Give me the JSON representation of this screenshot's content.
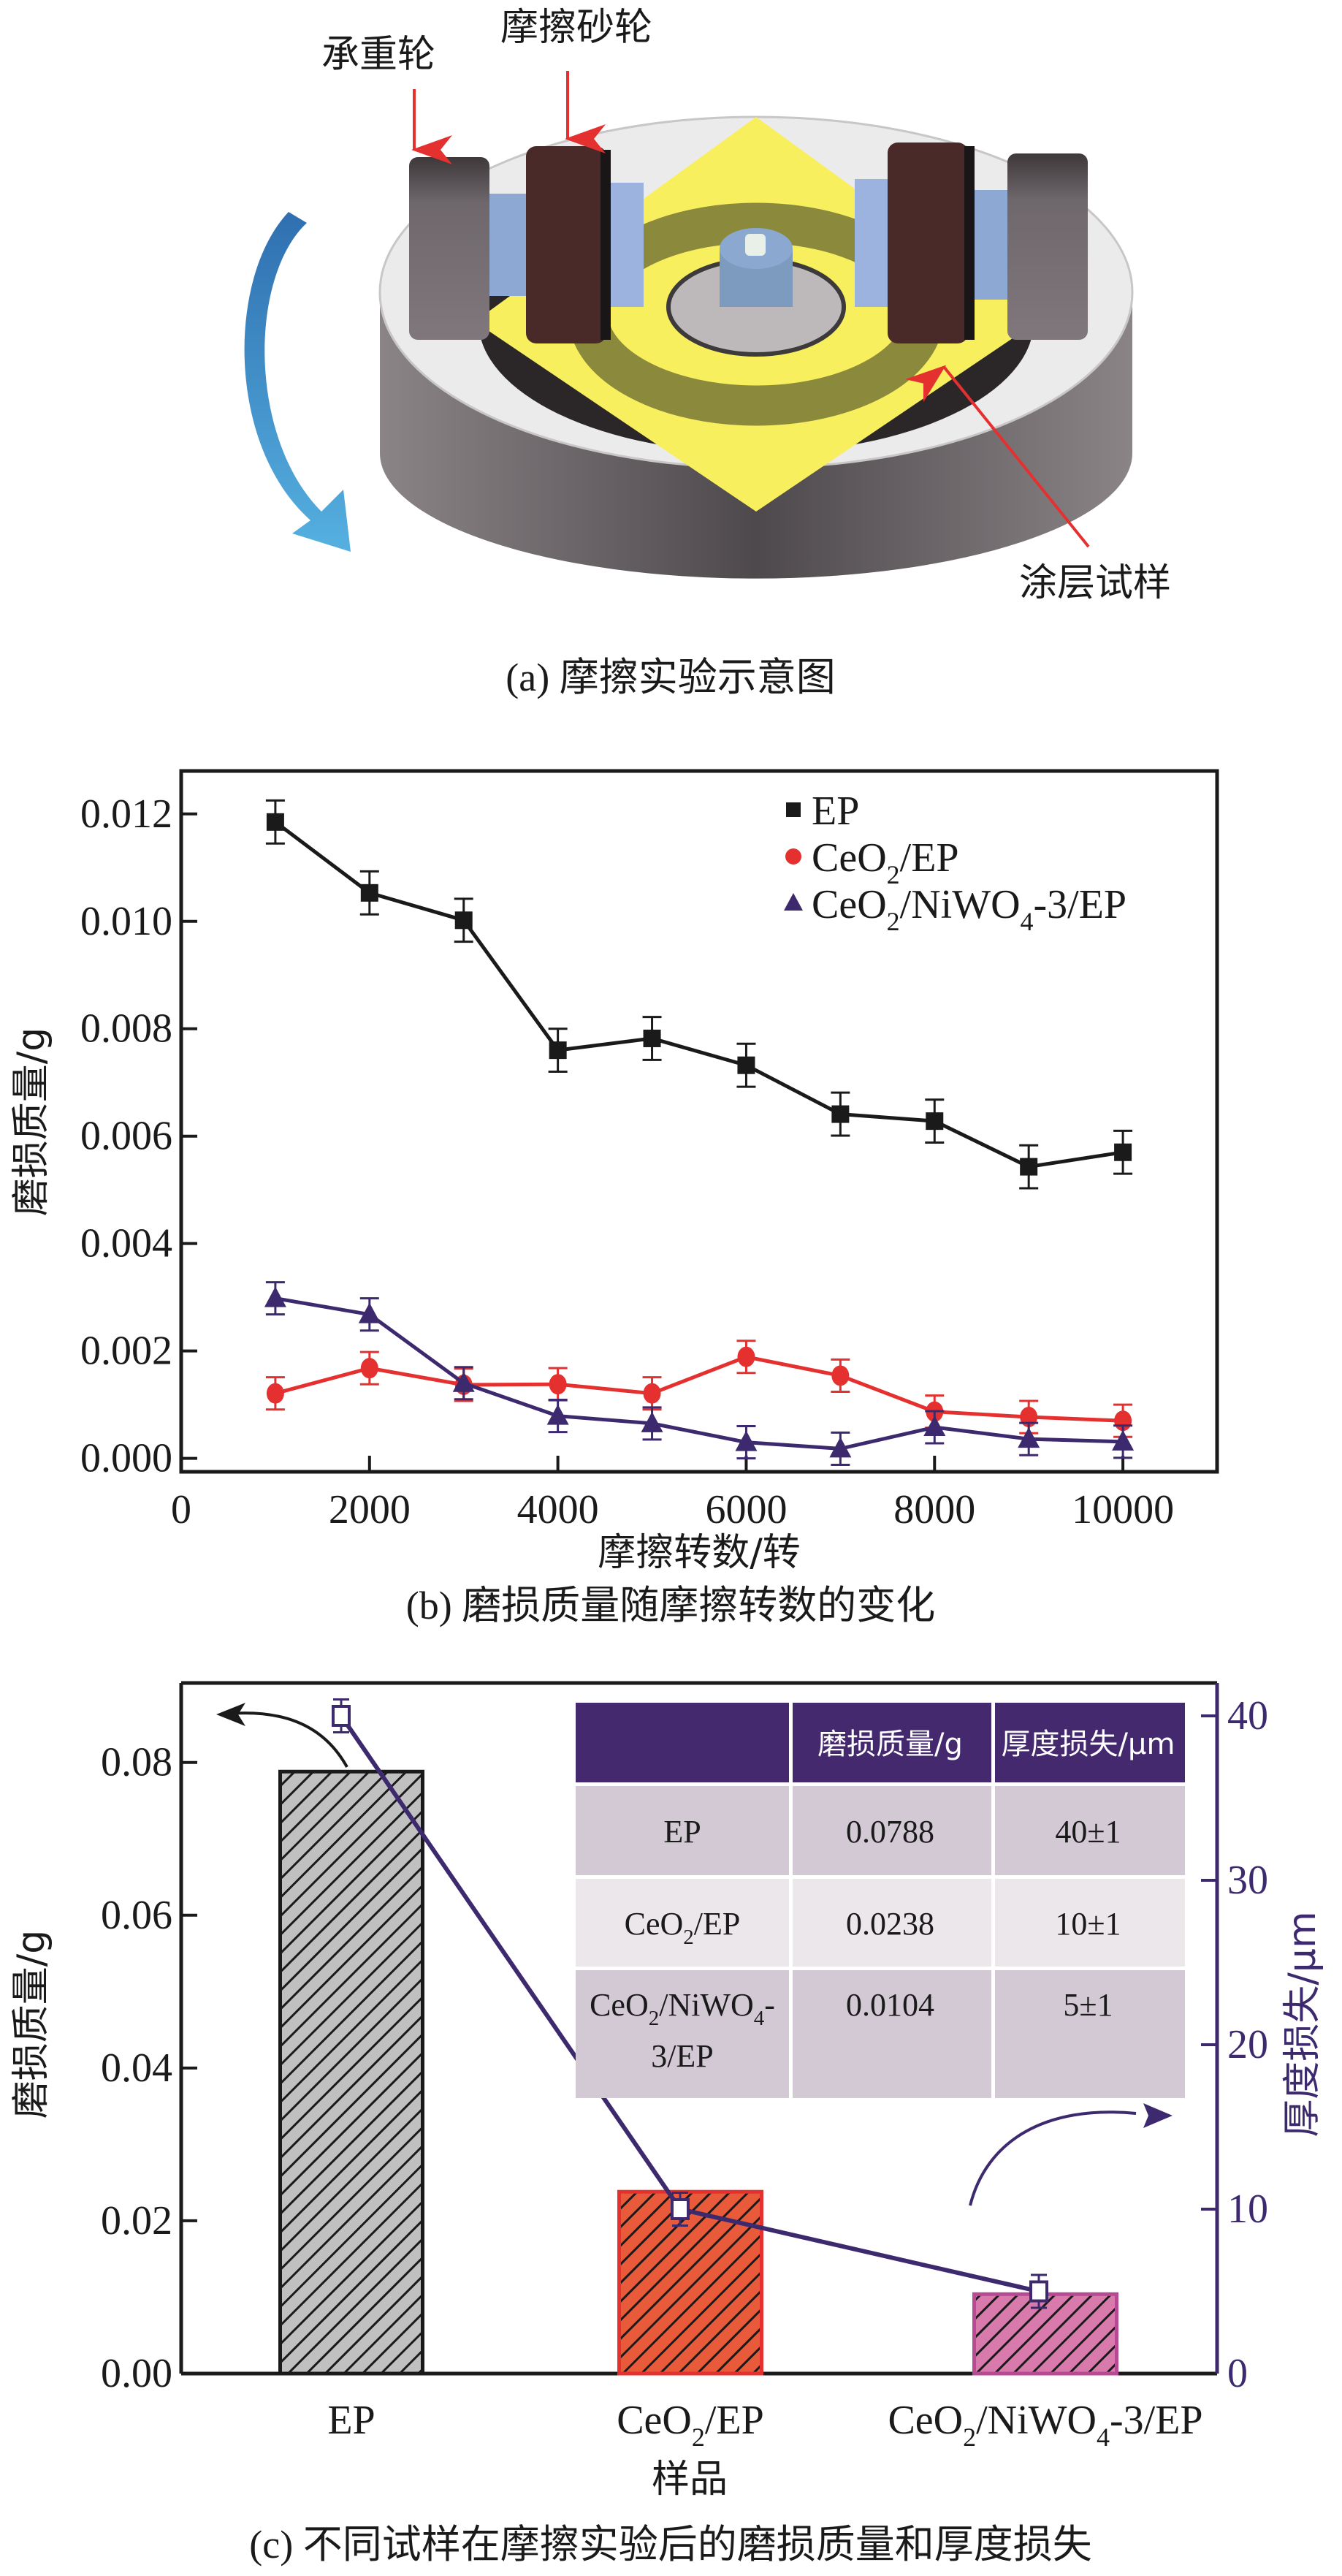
{
  "panel_a": {
    "labels": {
      "bearing_wheel": "承重轮",
      "friction_wheel": "摩擦砂轮",
      "coating_sample": "涂层试样"
    },
    "caption": "(a) 摩擦实验示意图",
    "colors": {
      "arrow_red": "#e53030",
      "rotation_arrow": "#3d8fc9",
      "sample_yellow": "#f8ef5e",
      "wear_track": "#8b8a3c",
      "friction_wheel": "#4a2a28",
      "bearing_wheel": "#6f676b",
      "hub_blue": "#8ea8d4",
      "base_top": "#ecebeb",
      "base_side": "#5a5558"
    }
  },
  "chart_data": [
    {
      "id": "b",
      "type": "line",
      "title": "",
      "caption": "(b) 磨损质量随摩擦转数的变化",
      "xlabel": "摩擦转数/转",
      "ylabel": "磨损质量/g",
      "xlim": [
        0,
        11000
      ],
      "ylim": [
        -0.00025,
        0.0128
      ],
      "xticks": [
        0,
        2000,
        4000,
        6000,
        8000,
        10000
      ],
      "xtick_labels": [
        "0",
        "2000",
        "4000",
        "6000",
        "8000",
        "10000"
      ],
      "yticks": [
        0,
        0.002,
        0.004,
        0.006,
        0.008,
        0.01,
        0.012
      ],
      "ytick_labels": [
        "0.000",
        "0.002",
        "0.004",
        "0.006",
        "0.008",
        "0.010",
        "0.012"
      ],
      "grid": false,
      "legend_position": "top-right",
      "x": [
        1000,
        2000,
        3000,
        4000,
        5000,
        6000,
        7000,
        8000,
        9000,
        10000
      ],
      "series": [
        {
          "name": "EP",
          "legend": {
            "base": "EP",
            "parts": [
              [
                "EP",
                ""
              ]
            ]
          },
          "marker": "square",
          "color": "#1a1a1a",
          "values": [
            0.01185,
            0.01053,
            0.01002,
            0.0076,
            0.00782,
            0.00732,
            0.00641,
            0.00628,
            0.00543,
            0.0057
          ],
          "errors": [
            0.0004,
            0.0004,
            0.0004,
            0.0004,
            0.0004,
            0.0004,
            0.0004,
            0.0004,
            0.0004,
            0.0004
          ]
        },
        {
          "name": "CeO2/EP",
          "legend": {
            "parts": [
              [
                "CeO",
                ""
              ],
              [
                "2",
                "sub"
              ],
              [
                "/EP",
                ""
              ]
            ]
          },
          "marker": "circle",
          "color": "#e53030",
          "values": [
            0.00121,
            0.00168,
            0.00137,
            0.00138,
            0.00121,
            0.00189,
            0.00154,
            0.00087,
            0.00077,
            0.0007
          ],
          "errors": [
            0.0003,
            0.0003,
            0.0003,
            0.0003,
            0.0003,
            0.0003,
            0.0003,
            0.0003,
            0.0003,
            0.0003
          ]
        },
        {
          "name": "CeO2/NiWO4-3/EP",
          "legend": {
            "parts": [
              [
                "CeO",
                ""
              ],
              [
                "2",
                "sub"
              ],
              [
                "/NiWO",
                ""
              ],
              [
                "4",
                "sub"
              ],
              [
                "-3/EP",
                ""
              ]
            ]
          },
          "marker": "triangle",
          "color": "#3d2a6e",
          "values": [
            0.00298,
            0.00268,
            0.0014,
            0.00079,
            0.00065,
            0.0003,
            0.00018,
            0.00058,
            0.00036,
            0.00031
          ],
          "errors": [
            0.0003,
            0.0003,
            0.0003,
            0.0003,
            0.0003,
            0.0003,
            0.0003,
            0.0003,
            0.0003,
            0.0003
          ]
        }
      ]
    },
    {
      "id": "c",
      "type": "bar",
      "title": "",
      "caption": "(c) 不同试样在摩擦实验后的磨损质量和厚度损失",
      "xlabel": "样品",
      "ylabel": "磨损质量/g",
      "ylabel_right": "厚度损失/μm",
      "ylim": [
        0,
        0.0904
      ],
      "ylim_right": [
        0,
        42.0
      ],
      "yticks": [
        0,
        0.02,
        0.04,
        0.06,
        0.08
      ],
      "ytick_labels": [
        "0.00",
        "0.02",
        "0.04",
        "0.06",
        "0.08"
      ],
      "yticks_right": [
        0,
        10,
        20,
        30,
        40
      ],
      "ytick_labels_right": [
        "0",
        "10",
        "20",
        "30",
        "40"
      ],
      "grid": false,
      "categories": [
        "EP",
        "CeO2/EP",
        "CeO2/NiWO4-3/EP"
      ],
      "category_labels": [
        [
          [
            "EP",
            ""
          ]
        ],
        [
          [
            "CeO",
            ""
          ],
          [
            "2",
            "sub"
          ],
          [
            "/EP",
            ""
          ]
        ],
        [
          [
            "CeO",
            ""
          ],
          [
            "2",
            "sub"
          ],
          [
            "/NiWO",
            ""
          ],
          [
            "4",
            "sub"
          ],
          [
            "-3/EP",
            ""
          ]
        ]
      ],
      "series": [
        {
          "name": "磨损质量/g",
          "type": "bar",
          "axis": "left",
          "values": [
            0.0788,
            0.0238,
            0.0104
          ],
          "fill_colors": [
            "#c0c0c0",
            "#e85a3a",
            "#d87aac"
          ],
          "edge_colors": [
            "#1a1a1a",
            "#e53030",
            "#b84a94"
          ],
          "hatch": "diagonal"
        },
        {
          "name": "厚度损失/μm",
          "type": "line",
          "axis": "right",
          "marker": "open-square",
          "color": "#3d2a6e",
          "values": [
            40,
            10,
            5
          ],
          "errors": [
            1,
            1,
            1
          ]
        }
      ],
      "annotations": [
        {
          "type": "arrow",
          "text": "",
          "points_to": "left-axis",
          "color": "#1a1a1a"
        },
        {
          "type": "arrow",
          "text": "",
          "points_to": "right-axis",
          "color": "#3d2a6e"
        }
      ],
      "inset_table": {
        "header": [
          "",
          "磨损质量/g",
          "厚度损失/μm"
        ],
        "rows": [
          {
            "sample": [
              [
                "EP",
                ""
              ]
            ],
            "mass": "0.0788",
            "thickness": "40±1"
          },
          {
            "sample": [
              [
                "CeO",
                ""
              ],
              [
                "2",
                "sub"
              ],
              [
                "/EP",
                ""
              ]
            ],
            "mass": "0.0238",
            "thickness": "10±1"
          },
          {
            "sample_lines": [
              [
                [
                  "CeO",
                  ""
                ],
                [
                  "2",
                  "sub"
                ],
                [
                  "/NiWO",
                  ""
                ],
                [
                  "4",
                  "sub"
                ],
                [
                  "-",
                  ""
                ]
              ],
              [
                [
                  "3/EP",
                  ""
                ]
              ]
            ],
            "mass": "0.0104",
            "thickness": "5±1"
          }
        ],
        "colors": {
          "header_bg": "#44296e",
          "row_dark": "#d3c9d5",
          "row_light": "#ece7eb"
        }
      }
    }
  ]
}
